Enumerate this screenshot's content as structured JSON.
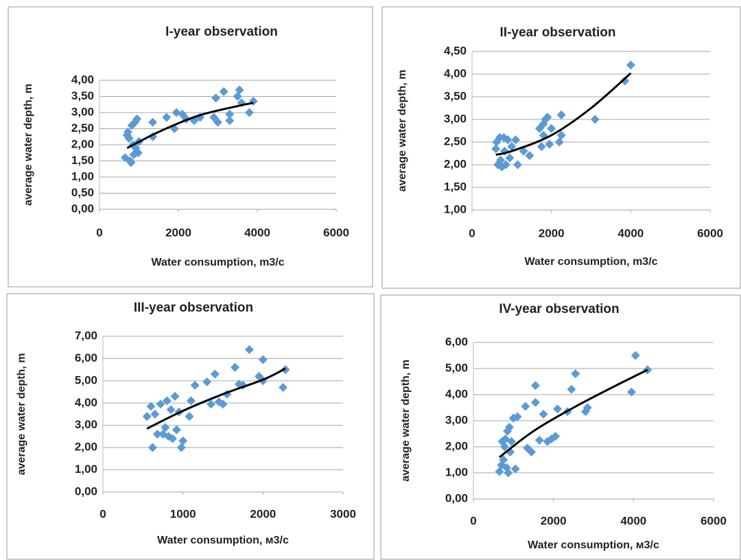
{
  "chart_data": [
    {
      "type": "scatter",
      "title": "I-year observation",
      "xlabel": "Water consumption,  m3/c",
      "ylabel": "average water depth, m",
      "xlim": [
        0,
        6000
      ],
      "ylim": [
        0,
        4
      ],
      "xticks": [
        0,
        2000,
        4000,
        6000
      ],
      "yticks": [
        {
          "value": 0,
          "label": "0,00"
        },
        {
          "value": 0.5,
          "label": "0,50"
        },
        {
          "value": 1,
          "label": "1,00"
        },
        {
          "value": 1.5,
          "label": "1,50"
        },
        {
          "value": 2,
          "label": "2,00"
        },
        {
          "value": 2.5,
          "label": "2,50"
        },
        {
          "value": 3,
          "label": "3,00"
        },
        {
          "value": 3.5,
          "label": "3,50"
        },
        {
          "value": 4,
          "label": "4,00"
        }
      ],
      "grid": true,
      "series": [
        {
          "color": "#5b9bd5",
          "x": [
            650,
            700,
            720,
            750,
            780,
            800,
            820,
            850,
            870,
            900,
            920,
            950,
            980,
            1000,
            1350,
            1350,
            1700,
            1900,
            1950,
            2100,
            2200,
            2400,
            2550,
            2900,
            2950,
            3000,
            3150,
            3300,
            3300,
            3500,
            3550,
            3600,
            3800,
            3900
          ],
          "values": [
            1.6,
            2.3,
            2.4,
            2.2,
            1.5,
            1.45,
            2.6,
            2.0,
            1.7,
            2.7,
            1.9,
            2.8,
            1.75,
            2.1,
            2.25,
            2.7,
            2.85,
            2.5,
            3.0,
            2.95,
            2.8,
            2.75,
            2.85,
            2.85,
            3.45,
            2.7,
            3.65,
            2.75,
            2.95,
            3.5,
            3.7,
            3.3,
            3.0,
            3.35
          ]
        }
      ],
      "trendline": {
        "color": "#000000",
        "x": [
          700,
          1500,
          2500,
          3500,
          3900
        ],
        "values": [
          1.9,
          2.4,
          2.9,
          3.2,
          3.3
        ]
      }
    },
    {
      "type": "scatter",
      "title": "II-year observation",
      "xlabel": "Water consumption,  m3/c",
      "ylabel": "average water depth, m",
      "xlim": [
        0,
        6000
      ],
      "ylim": [
        1,
        4.5
      ],
      "xticks": [
        0,
        2000,
        4000,
        6000
      ],
      "yticks": [
        {
          "value": 1,
          "label": "1,00"
        },
        {
          "value": 1.5,
          "label": "1,50"
        },
        {
          "value": 2,
          "label": "2,00"
        },
        {
          "value": 2.5,
          "label": "2,50"
        },
        {
          "value": 3,
          "label": "3,00"
        },
        {
          "value": 3.5,
          "label": "3,50"
        },
        {
          "value": 4,
          "label": "4,00"
        },
        {
          "value": 4.5,
          "label": "4,50"
        }
      ],
      "grid": true,
      "series": [
        {
          "color": "#5b9bd5",
          "x": [
            600,
            620,
            650,
            700,
            720,
            750,
            800,
            820,
            850,
            900,
            950,
            1000,
            1100,
            1150,
            1300,
            1450,
            1700,
            1750,
            1800,
            1800,
            1850,
            1900,
            1950,
            2000,
            2200,
            2250,
            2250,
            3100,
            3850,
            4000
          ],
          "values": [
            2.35,
            2.5,
            2.0,
            2.6,
            2.1,
            1.95,
            2.6,
            2.3,
            2.0,
            2.55,
            2.15,
            2.4,
            2.55,
            2.0,
            2.3,
            2.2,
            2.8,
            2.4,
            2.9,
            2.65,
            3.0,
            3.05,
            2.45,
            2.8,
            2.5,
            2.65,
            3.1,
            3.0,
            3.85,
            4.2
          ]
        }
      ],
      "trendline": {
        "color": "#000000",
        "x": [
          600,
          1000,
          2000,
          3000,
          4000
        ],
        "values": [
          2.22,
          2.3,
          2.65,
          3.25,
          4.02
        ]
      }
    },
    {
      "type": "scatter",
      "title": "III-year observation",
      "xlabel": "Water consumption, м3/с",
      "ylabel": "average water depth, m",
      "xlim": [
        0,
        3000
      ],
      "ylim": [
        0,
        7
      ],
      "xticks": [
        0,
        1000,
        2000,
        3000
      ],
      "yticks": [
        {
          "value": 0,
          "label": "0,00"
        },
        {
          "value": 1,
          "label": "1,00"
        },
        {
          "value": 2,
          "label": "2,00"
        },
        {
          "value": 3,
          "label": "3,00"
        },
        {
          "value": 4,
          "label": "4,00"
        },
        {
          "value": 5,
          "label": "5,00"
        },
        {
          "value": 6,
          "label": "6,00"
        },
        {
          "value": 7,
          "label": "7,00"
        }
      ],
      "grid": true,
      "series": [
        {
          "color": "#5b9bd5",
          "x": [
            550,
            600,
            620,
            650,
            680,
            720,
            750,
            780,
            800,
            820,
            850,
            870,
            900,
            920,
            950,
            980,
            1000,
            1080,
            1100,
            1150,
            1300,
            1350,
            1400,
            1450,
            1500,
            1550,
            1650,
            1700,
            1750,
            1830,
            1950,
            2000,
            2000,
            2250,
            2280
          ],
          "values": [
            3.4,
            3.85,
            2.0,
            3.5,
            2.6,
            3.95,
            2.6,
            2.9,
            4.1,
            2.5,
            3.7,
            2.4,
            4.3,
            2.8,
            3.6,
            2.0,
            2.3,
            3.4,
            4.1,
            4.8,
            4.95,
            3.95,
            5.3,
            4.05,
            3.95,
            4.4,
            5.6,
            4.85,
            4.8,
            6.4,
            5.2,
            5.95,
            5.0,
            4.7,
            5.5
          ]
        }
      ],
      "trendline": {
        "color": "#000000",
        "x": [
          550,
          1000,
          1500,
          2000,
          2280
        ],
        "values": [
          2.85,
          3.65,
          4.4,
          5.05,
          5.55
        ]
      }
    },
    {
      "type": "scatter",
      "title": "IV-year observation",
      "xlabel": "Water consumption, м3/с",
      "ylabel": "average water depth, m",
      "xlim": [
        0,
        6000
      ],
      "ylim": [
        0,
        6
      ],
      "xticks": [
        0,
        2000,
        4000,
        6000
      ],
      "yticks": [
        {
          "value": 0,
          "label": "0,00"
        },
        {
          "value": 1,
          "label": "1,00"
        },
        {
          "value": 2,
          "label": "2,00"
        },
        {
          "value": 3,
          "label": "3,00"
        },
        {
          "value": 4,
          "label": "4,00"
        },
        {
          "value": 5,
          "label": "5,00"
        },
        {
          "value": 6,
          "label": "6,00"
        }
      ],
      "grid": true,
      "series": [
        {
          "color": "#5b9bd5",
          "x": [
            650,
            700,
            720,
            750,
            780,
            800,
            830,
            850,
            870,
            900,
            920,
            950,
            1000,
            1050,
            1100,
            1300,
            1350,
            1450,
            1550,
            1550,
            1650,
            1750,
            1850,
            1950,
            2050,
            2100,
            2350,
            2450,
            2550,
            2800,
            2850,
            3950,
            4050,
            4350
          ],
          "values": [
            1.05,
            1.3,
            2.2,
            1.5,
            2.0,
            2.3,
            1.2,
            2.6,
            1.0,
            2.75,
            1.8,
            2.2,
            3.1,
            1.15,
            3.15,
            3.55,
            1.95,
            1.8,
            4.35,
            3.7,
            2.25,
            3.25,
            2.2,
            2.3,
            2.4,
            3.45,
            3.35,
            4.2,
            4.8,
            3.35,
            3.5,
            4.1,
            5.5,
            4.95
          ]
        }
      ],
      "trendline": {
        "color": "#000000",
        "x": [
          650,
          1500,
          2500,
          3500,
          4350
        ],
        "values": [
          1.6,
          2.6,
          3.5,
          4.3,
          4.95
        ]
      }
    }
  ]
}
